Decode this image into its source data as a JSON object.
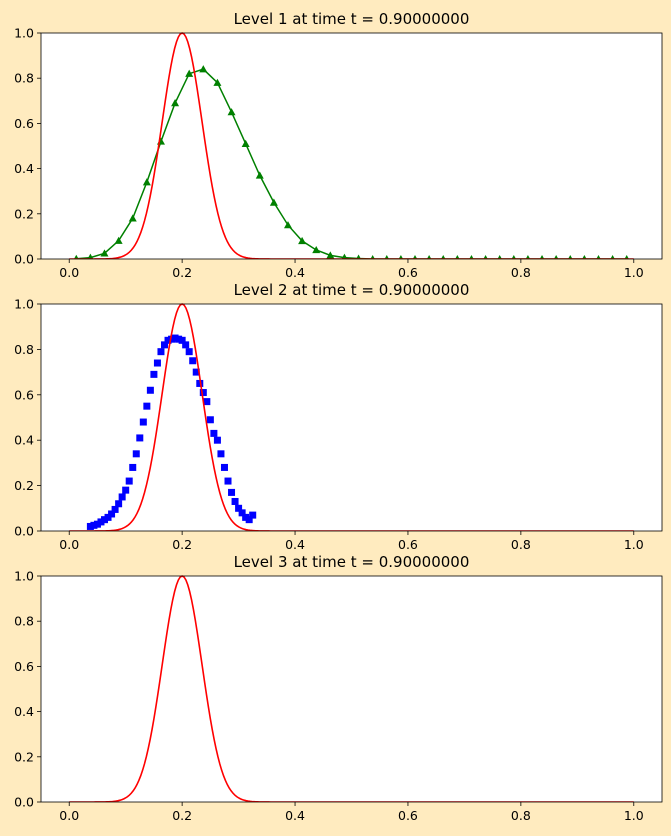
{
  "figure": {
    "background": "#ffebbf"
  },
  "chart_data": [
    {
      "type": "line",
      "title": "Level 1 at time t =     0.90000000",
      "xlabel": "",
      "ylabel": "",
      "xlim": [
        -0.05,
        1.05
      ],
      "ylim": [
        0,
        1
      ],
      "xticks": [
        "0.0",
        "0.2",
        "0.4",
        "0.6",
        "0.8",
        "1.0"
      ],
      "yticks": [
        "0.0",
        "0.2",
        "0.4",
        "0.6",
        "0.8",
        "1.0"
      ],
      "grid": false,
      "exact": {
        "color": "#ff0000",
        "center": 0.2,
        "width": 0.05,
        "amplitude": 1.0,
        "x": [
          0,
          1
        ]
      },
      "series": [
        {
          "marker": "triangle",
          "color": "#008000",
          "x": [
            0.0125,
            0.0375,
            0.0625,
            0.0875,
            0.1125,
            0.1375,
            0.1625,
            0.1875,
            0.2125,
            0.2375,
            0.2625,
            0.2875,
            0.3125,
            0.3375,
            0.3625,
            0.3875,
            0.4125,
            0.4375,
            0.4625,
            0.4875,
            0.5125,
            0.5375,
            0.5625,
            0.5875,
            0.6125,
            0.6375,
            0.6625,
            0.6875,
            0.7125,
            0.7375,
            0.7625,
            0.7875,
            0.8125,
            0.8375,
            0.8625,
            0.8875,
            0.9125,
            0.9375,
            0.9625,
            0.9875
          ],
          "y": [
            0.001,
            0.006,
            0.025,
            0.081,
            0.18,
            0.34,
            0.52,
            0.69,
            0.82,
            0.84,
            0.78,
            0.65,
            0.51,
            0.37,
            0.25,
            0.15,
            0.08,
            0.04,
            0.016,
            0.006,
            0.002,
            0,
            0,
            0,
            0,
            0,
            0,
            0,
            0,
            0,
            0,
            0,
            0,
            0,
            0,
            0,
            0,
            0,
            0,
            0
          ]
        }
      ]
    },
    {
      "type": "line",
      "title": "Level 2 at time t =     0.90000000",
      "xlabel": "",
      "ylabel": "",
      "xlim": [
        -0.05,
        1.05
      ],
      "ylim": [
        0,
        1
      ],
      "xticks": [
        "0.0",
        "0.2",
        "0.4",
        "0.6",
        "0.8",
        "1.0"
      ],
      "yticks": [
        "0.0",
        "0.2",
        "0.4",
        "0.6",
        "0.8",
        "1.0"
      ],
      "grid": false,
      "exact": {
        "color": "#ff0000",
        "center": 0.2,
        "width": 0.05,
        "amplitude": 1.0,
        "x": [
          0,
          1
        ]
      },
      "series": [
        {
          "marker": "square",
          "color": "#0000ff",
          "x": [
            0.0375,
            0.04375,
            0.05,
            0.05625,
            0.0625,
            0.06875,
            0.075,
            0.08125,
            0.0875,
            0.09375,
            0.1,
            0.10625,
            0.1125,
            0.11875,
            0.125,
            0.13125,
            0.1375,
            0.14375,
            0.15,
            0.15625,
            0.1625,
            0.16875,
            0.175,
            0.18125,
            0.1875,
            0.19375,
            0.2,
            0.20625,
            0.2125,
            0.21875,
            0.225,
            0.23125,
            0.2375,
            0.24375,
            0.25,
            0.25625,
            0.2625,
            0.26875,
            0.275,
            0.28125,
            0.2875,
            0.29375,
            0.3,
            0.30625,
            0.3125,
            0.31875,
            0.325
          ],
          "y": [
            0.02,
            0.025,
            0.03,
            0.04,
            0.05,
            0.06,
            0.075,
            0.095,
            0.12,
            0.15,
            0.18,
            0.22,
            0.28,
            0.34,
            0.41,
            0.48,
            0.55,
            0.62,
            0.69,
            0.74,
            0.79,
            0.82,
            0.84,
            0.845,
            0.85,
            0.845,
            0.84,
            0.82,
            0.79,
            0.75,
            0.7,
            0.65,
            0.61,
            0.57,
            0.49,
            0.43,
            0.4,
            0.34,
            0.28,
            0.22,
            0.17,
            0.13,
            0.1,
            0.08,
            0.06,
            0.05,
            0.07
          ]
        }
      ]
    },
    {
      "type": "line",
      "title": "Level 3 at time t =     0.90000000",
      "xlabel": "",
      "ylabel": "",
      "xlim": [
        -0.05,
        1.05
      ],
      "ylim": [
        0,
        1
      ],
      "xticks": [
        "0.0",
        "0.2",
        "0.4",
        "0.6",
        "0.8",
        "1.0"
      ],
      "yticks": [
        "0.0",
        "0.2",
        "0.4",
        "0.6",
        "0.8",
        "1.0"
      ],
      "grid": false,
      "exact": {
        "color": "#ff0000",
        "center": 0.2,
        "width": 0.05,
        "amplitude": 1.0,
        "x": [
          0,
          1
        ]
      },
      "series": []
    }
  ]
}
